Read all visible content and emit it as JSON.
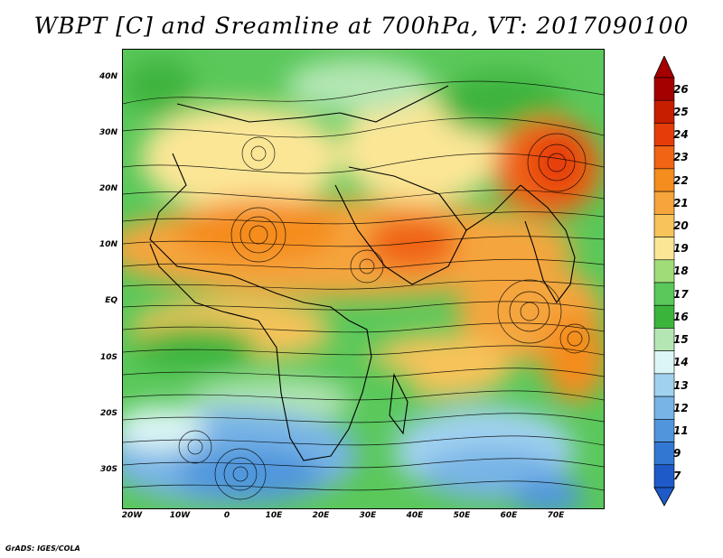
{
  "title": "WBPT [C] and Sreamline at 700hPa, VT: 2017090100",
  "credit": "GrADS: IGES/COLA",
  "lat_labels": [
    "40N",
    "30N",
    "20N",
    "10N",
    "EQ",
    "10S",
    "20S",
    "30S"
  ],
  "lon_labels": [
    "20W",
    "10W",
    "0",
    "10E",
    "20E",
    "30E",
    "40E",
    "50E",
    "60E",
    "70E"
  ],
  "colorbar": {
    "labels": [
      "26",
      "25",
      "24",
      "23",
      "22",
      "21",
      "20",
      "19",
      "18",
      "17",
      "16",
      "15",
      "14",
      "13",
      "12",
      "11",
      "9",
      "7"
    ],
    "colors": [
      "#a50000",
      "#c81e00",
      "#e63c0a",
      "#f06414",
      "#f58c1e",
      "#f5a53c",
      "#f7c35a",
      "#fbe696",
      "#a0dc78",
      "#5ac85a",
      "#3cb43c",
      "#b4e6b4",
      "#dcf5f5",
      "#a0d2f0",
      "#78b4e6",
      "#5096dc",
      "#3278d2",
      "#1e5ac8"
    ]
  },
  "colors": {
    "warm": "#f5a53c",
    "hot": "#e63c0a",
    "cool": "#5096dc",
    "green": "#5ac85a",
    "yellow": "#fbe696"
  }
}
